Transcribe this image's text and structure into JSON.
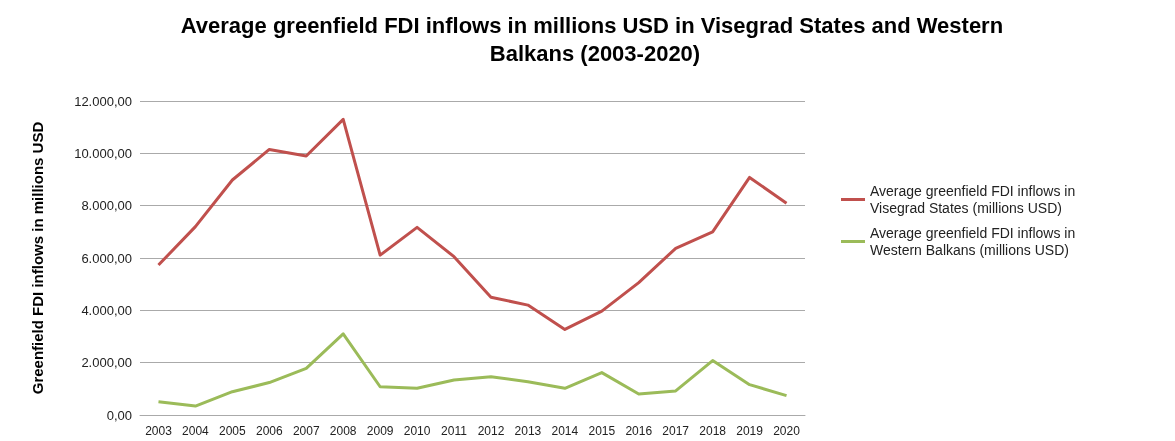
{
  "chart_data": {
    "type": "line",
    "title": "Average greenfield FDI inflows in millions USD in Visegrad States and Western Balkans (2003-2020)",
    "ylabel": "Greenfield FDI inflows in millions USD",
    "categories": [
      "2003",
      "2004",
      "2005",
      "2006",
      "2007",
      "2008",
      "2009",
      "2010",
      "2011",
      "2012",
      "2013",
      "2014",
      "2015",
      "2016",
      "2017",
      "2018",
      "2019",
      "2020"
    ],
    "series": [
      {
        "name": "Average greenfield FDI inflows in Visegrad States (millions USD)",
        "color": "#c0504d",
        "values": [
          5730,
          7200,
          8980,
          10150,
          9900,
          11300,
          6110,
          7170,
          6050,
          4500,
          4200,
          3270,
          3970,
          5060,
          6370,
          7000,
          9080,
          8090
        ]
      },
      {
        "name": "Average greenfield FDI inflows in Western Balkans (millions USD)",
        "color": "#9bbb59",
        "values": [
          510,
          340,
          890,
          1240,
          1780,
          3100,
          1080,
          1020,
          1340,
          1460,
          1270,
          1020,
          1620,
          800,
          920,
          2080,
          1160,
          740
        ]
      }
    ],
    "ylim": [
      0,
      12000
    ],
    "yticks": [
      {
        "value": 0,
        "label": "0,00"
      },
      {
        "value": 2000,
        "label": "2.000,00"
      },
      {
        "value": 4000,
        "label": "4.000,00"
      },
      {
        "value": 6000,
        "label": "6.000,00"
      },
      {
        "value": 8000,
        "label": "8.000,00"
      },
      {
        "value": 10000,
        "label": "10.000,00"
      },
      {
        "value": 12000,
        "label": "12.000,00"
      }
    ],
    "grid": "y",
    "legend": "right",
    "marker": "none",
    "line_style": "solid"
  }
}
